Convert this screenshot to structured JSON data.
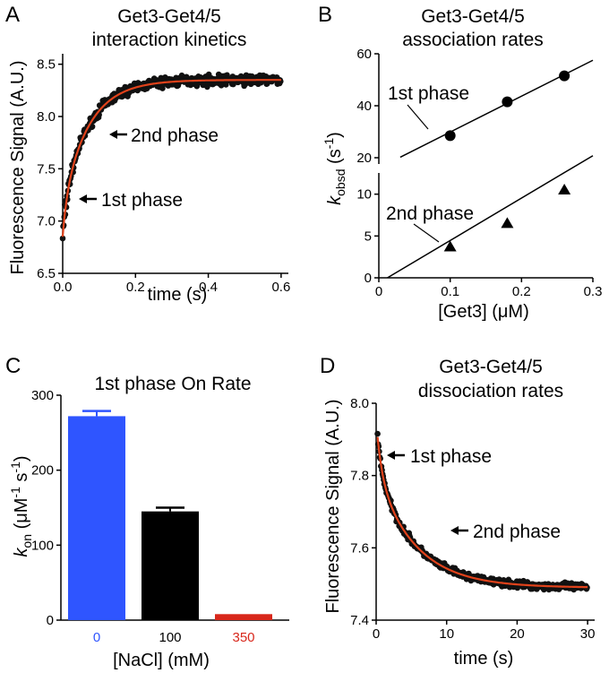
{
  "chart_data": [
    {
      "panel": "A",
      "type": "scatter",
      "title_lines": [
        "Get3-Get4/5",
        "interaction kinetics"
      ],
      "xlabel": "time (s)",
      "ylabel": "Fluorescence Signal (A.U.)",
      "xlim": [
        0,
        0.62
      ],
      "ylim": [
        6.5,
        8.6
      ],
      "xticks": [
        0.0,
        0.2,
        0.4,
        0.6
      ],
      "xtick_labels": [
        "0.0",
        "0.2",
        "0.4",
        "0.6"
      ],
      "yticks": [
        6.5,
        7.0,
        7.5,
        8.0,
        8.5
      ],
      "ytick_labels": [
        "6.5",
        "7.0",
        "7.5",
        "8.0",
        "8.5"
      ],
      "fit": {
        "y0": 6.85,
        "a1": 0.3,
        "k1": 90,
        "a2": 1.2,
        "k2": 14,
        "t_max": 0.6,
        "color": "#e0421b"
      },
      "annotations": [
        {
          "text": "2nd phase",
          "x": 0.12,
          "y": 7.95
        },
        {
          "text": "1st phase",
          "x": 0.04,
          "y": 7.27
        }
      ]
    },
    {
      "panel": "B",
      "type": "scatter",
      "title_lines": [
        "Get3-Get4/5",
        "association rates"
      ],
      "xlabel": "[Get3] (μM)",
      "ylabel_main": "k",
      "ylabel_sub": "obsd",
      "ylabel_tail": " (s",
      "ylabel_sup": "-1",
      "ylabel_end": ")",
      "xlim": [
        0,
        0.3
      ],
      "xticks": [
        0,
        0.1,
        0.2,
        0.3
      ],
      "xtick_labels": [
        "0",
        "0.1",
        "0.2",
        "0.3"
      ],
      "upper": {
        "ylim": [
          20,
          60
        ],
        "yticks": [
          20,
          40,
          60
        ],
        "ytick_labels": [
          "20",
          "40",
          "60"
        ],
        "series": {
          "name": "1st phase",
          "x": [
            0.1,
            0.18,
            0.26
          ],
          "y": [
            28.5,
            41.5,
            51.5
          ]
        },
        "fit_line": {
          "x": [
            0.03,
            0.3
          ],
          "y": [
            20.2,
            57.5
          ]
        }
      },
      "lower": {
        "ylim": [
          0,
          12
        ],
        "yticks": [
          0,
          5,
          10
        ],
        "ytick_labels": [
          "0",
          "5",
          "10"
        ],
        "series": {
          "name": "2nd phase",
          "x": [
            0.1,
            0.18,
            0.26
          ],
          "y": [
            3.7,
            6.5,
            10.5
          ]
        },
        "fit_line": {
          "x": [
            0.012,
            0.3
          ],
          "y": [
            0,
            14.6
          ]
        }
      },
      "annotations": [
        {
          "text": "1st phase"
        },
        {
          "text": "2nd phase"
        }
      ]
    },
    {
      "panel": "C",
      "type": "bar",
      "title": "1st phase On Rate",
      "xlabel": "[NaCl] (mM)",
      "ylabel_main": "k",
      "ylabel_sub": "on",
      "ylabel_unit": " (μM",
      "ylabel_sup1": "-1",
      "ylabel_mid": " s",
      "ylabel_sup2": "-1",
      "ylabel_end": ")",
      "ylim": [
        0,
        300
      ],
      "yticks": [
        0,
        100,
        200,
        300
      ],
      "ytick_labels": [
        "0",
        "100",
        "200",
        "300"
      ],
      "categories": [
        "0",
        "100",
        "350"
      ],
      "values": [
        272,
        145,
        8
      ],
      "errors": [
        7,
        5,
        0
      ],
      "colors": [
        "#2f55ff",
        "#000000",
        "#d8271b"
      ],
      "category_label_colors": [
        "#2f55ff",
        "#000000",
        "#d8271b"
      ]
    },
    {
      "panel": "D",
      "type": "scatter",
      "title_lines": [
        "Get3-Get4/5",
        "dissociation rates"
      ],
      "xlabel": "time (s)",
      "ylabel": "Fluorescence Signal (A.U.)",
      "xlim": [
        0,
        31
      ],
      "ylim": [
        7.4,
        8.0
      ],
      "xticks": [
        0,
        10,
        20,
        30
      ],
      "xtick_labels": [
        "0",
        "10",
        "20",
        "30"
      ],
      "yticks": [
        7.4,
        7.6,
        7.8,
        8.0
      ],
      "ytick_labels": [
        "7.4",
        "7.6",
        "7.8",
        "8.0"
      ],
      "fit": {
        "y0": 7.49,
        "a1": 0.14,
        "k1": 1.3,
        "a2": 0.32,
        "k2": 0.18,
        "t_max": 30,
        "color": "#e0421b"
      },
      "annotations": [
        {
          "text": "1st phase",
          "x": 1.0,
          "y": 7.89
        },
        {
          "text": "2nd phase",
          "x": 8.0,
          "y": 7.64
        }
      ]
    }
  ],
  "panel_letters": [
    "A",
    "B",
    "C",
    "D"
  ]
}
